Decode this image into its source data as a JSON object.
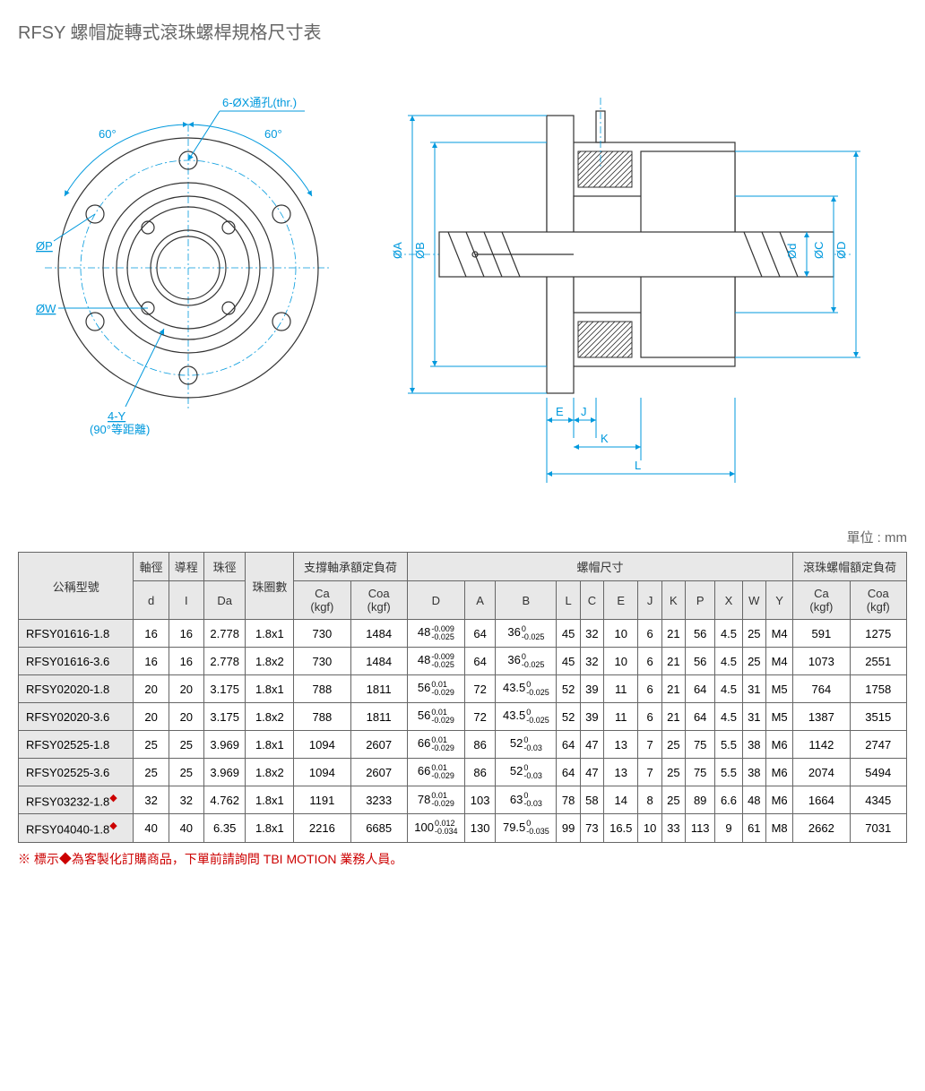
{
  "title": "RFSY 螺帽旋轉式滾珠螺桿規格尺寸表",
  "unit_label": "單位 : mm",
  "diagram_labels": {
    "through_hole": "6-ØX通孔(thr.)",
    "angle60a": "60°",
    "angle60b": "60°",
    "dP": "ØP",
    "dW": "ØW",
    "fourY": "4-Y",
    "fourY_note": "(90°等距離)",
    "dA": "ØA",
    "dB": "ØB",
    "dd": "Ød",
    "dC": "ØC",
    "dD": "ØD",
    "E": "E",
    "J": "J",
    "K": "K",
    "L": "L"
  },
  "table": {
    "headers": {
      "model": "公稱型號",
      "shaft_d": "軸徑",
      "shaft_d_sub": "d",
      "lead": "導程",
      "lead_sub": "I",
      "ball_dia": "珠徑",
      "ball_dia_sub": "Da",
      "circuits": "珠圈數",
      "bearing_load": "支撐軸承額定負荷",
      "nut_dims": "螺帽尺寸",
      "nut_load": "滾珠螺帽額定負荷",
      "Ca": "Ca",
      "Coa": "Coa",
      "kgf": "(kgf)",
      "D": "D",
      "A": "A",
      "B": "B",
      "L": "L",
      "C": "C",
      "E": "E",
      "J": "J",
      "K": "K",
      "P": "P",
      "X": "X",
      "W": "W",
      "Y": "Y"
    },
    "rows": [
      {
        "model": "RFSY01616-1.8",
        "custom": false,
        "d": "16",
        "I": "16",
        "Da": "2.778",
        "circ": "1.8x1",
        "bCa": "730",
        "bCoa": "1484",
        "D": {
          "base": "48",
          "up": "-0.009",
          "lo": "-0.025"
        },
        "A": "64",
        "B": {
          "base": "36",
          "up": "0",
          "lo": "-0.025"
        },
        "Ld": "45",
        "Cd": "32",
        "Ed": "10",
        "Jd": "6",
        "Kd": "21",
        "Pd": "56",
        "Xd": "4.5",
        "Wd": "25",
        "Yd": "M4",
        "nCa": "591",
        "nCoa": "1275"
      },
      {
        "model": "RFSY01616-3.6",
        "custom": false,
        "d": "16",
        "I": "16",
        "Da": "2.778",
        "circ": "1.8x2",
        "bCa": "730",
        "bCoa": "1484",
        "D": {
          "base": "48",
          "up": "-0.009",
          "lo": "-0.025"
        },
        "A": "64",
        "B": {
          "base": "36",
          "up": "0",
          "lo": "-0.025"
        },
        "Ld": "45",
        "Cd": "32",
        "Ed": "10",
        "Jd": "6",
        "Kd": "21",
        "Pd": "56",
        "Xd": "4.5",
        "Wd": "25",
        "Yd": "M4",
        "nCa": "1073",
        "nCoa": "2551"
      },
      {
        "model": "RFSY02020-1.8",
        "custom": false,
        "d": "20",
        "I": "20",
        "Da": "3.175",
        "circ": "1.8x1",
        "bCa": "788",
        "bCoa": "1811",
        "D": {
          "base": "56",
          "up": "0.01",
          "lo": "-0.029"
        },
        "A": "72",
        "B": {
          "base": "43.5",
          "up": "0",
          "lo": "-0.025"
        },
        "Ld": "52",
        "Cd": "39",
        "Ed": "11",
        "Jd": "6",
        "Kd": "21",
        "Pd": "64",
        "Xd": "4.5",
        "Wd": "31",
        "Yd": "M5",
        "nCa": "764",
        "nCoa": "1758"
      },
      {
        "model": "RFSY02020-3.6",
        "custom": false,
        "d": "20",
        "I": "20",
        "Da": "3.175",
        "circ": "1.8x2",
        "bCa": "788",
        "bCoa": "1811",
        "D": {
          "base": "56",
          "up": "0.01",
          "lo": "-0.029"
        },
        "A": "72",
        "B": {
          "base": "43.5",
          "up": "0",
          "lo": "-0.025"
        },
        "Ld": "52",
        "Cd": "39",
        "Ed": "11",
        "Jd": "6",
        "Kd": "21",
        "Pd": "64",
        "Xd": "4.5",
        "Wd": "31",
        "Yd": "M5",
        "nCa": "1387",
        "nCoa": "3515"
      },
      {
        "model": "RFSY02525-1.8",
        "custom": false,
        "d": "25",
        "I": "25",
        "Da": "3.969",
        "circ": "1.8x1",
        "bCa": "1094",
        "bCoa": "2607",
        "D": {
          "base": "66",
          "up": "0.01",
          "lo": "-0.029"
        },
        "A": "86",
        "B": {
          "base": "52",
          "up": "0",
          "lo": "-0.03"
        },
        "Ld": "64",
        "Cd": "47",
        "Ed": "13",
        "Jd": "7",
        "Kd": "25",
        "Pd": "75",
        "Xd": "5.5",
        "Wd": "38",
        "Yd": "M6",
        "nCa": "1142",
        "nCoa": "2747"
      },
      {
        "model": "RFSY02525-3.6",
        "custom": false,
        "d": "25",
        "I": "25",
        "Da": "3.969",
        "circ": "1.8x2",
        "bCa": "1094",
        "bCoa": "2607",
        "D": {
          "base": "66",
          "up": "0.01",
          "lo": "-0.029"
        },
        "A": "86",
        "B": {
          "base": "52",
          "up": "0",
          "lo": "-0.03"
        },
        "Ld": "64",
        "Cd": "47",
        "Ed": "13",
        "Jd": "7",
        "Kd": "25",
        "Pd": "75",
        "Xd": "5.5",
        "Wd": "38",
        "Yd": "M6",
        "nCa": "2074",
        "nCoa": "5494"
      },
      {
        "model": "RFSY03232-1.8",
        "custom": true,
        "d": "32",
        "I": "32",
        "Da": "4.762",
        "circ": "1.8x1",
        "bCa": "1191",
        "bCoa": "3233",
        "D": {
          "base": "78",
          "up": "0.01",
          "lo": "-0.029"
        },
        "A": "103",
        "B": {
          "base": "63",
          "up": "0",
          "lo": "-0.03"
        },
        "Ld": "78",
        "Cd": "58",
        "Ed": "14",
        "Jd": "8",
        "Kd": "25",
        "Pd": "89",
        "Xd": "6.6",
        "Wd": "48",
        "Yd": "M6",
        "nCa": "1664",
        "nCoa": "4345"
      },
      {
        "model": "RFSY04040-1.8",
        "custom": true,
        "d": "40",
        "I": "40",
        "Da": "6.35",
        "circ": "1.8x1",
        "bCa": "2216",
        "bCoa": "6685",
        "D": {
          "base": "100",
          "up": "0.012",
          "lo": "-0.034"
        },
        "A": "130",
        "B": {
          "base": "79.5",
          "up": "0",
          "lo": "-0.035"
        },
        "Ld": "99",
        "Cd": "73",
        "Ed": "16.5",
        "Jd": "10",
        "Kd": "33",
        "Pd": "113",
        "Xd": "9",
        "Wd": "61",
        "Yd": "M8",
        "nCa": "2662",
        "nCoa": "7031"
      }
    ]
  },
  "footnote": "※ 標示◆為客製化訂購商品，下單前請詢問 TBI MOTION 業務人員。",
  "colors": {
    "dim": "#0099dd",
    "part": "#333333",
    "header_bg": "#e8e8e8",
    "border": "#666666",
    "red": "#cc0000"
  }
}
